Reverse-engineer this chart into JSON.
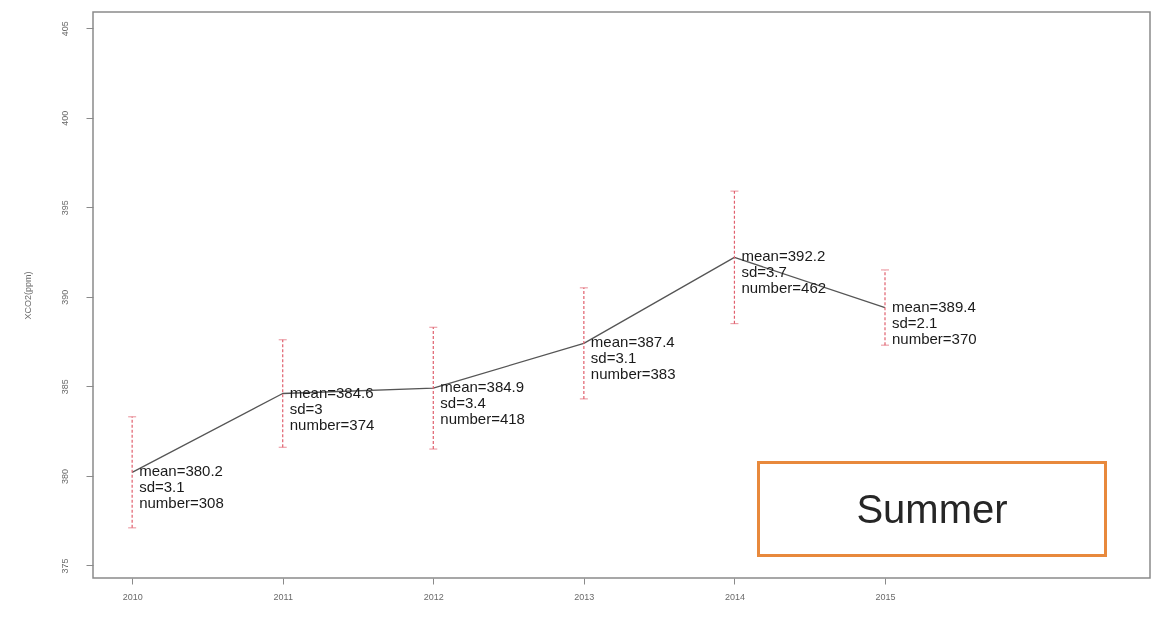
{
  "chart_data": {
    "type": "line",
    "ylabel": "XCO2(ppm)",
    "x": [
      2010,
      2011,
      2012,
      2013,
      2014,
      2015
    ],
    "values": [
      380.2,
      384.6,
      384.9,
      387.4,
      392.2,
      389.4
    ],
    "errors": [
      3.1,
      3,
      3.4,
      3.1,
      3.7,
      2.1
    ],
    "value_labels": [
      "mean=380.2\nsd=3.1\nnumber=308",
      "mean=384.6\nsd=3\nnumber=374",
      "mean=384.9\nsd=3.4\nnumber=418",
      "mean=387.4\nsd=3.1\nnumber=383",
      "mean=392.2\nsd=3.7\nnumber=462",
      "mean=389.4\nsd=2.1\nnumber=370"
    ],
    "color": "#555555",
    "xlim": [
      2009.74,
      2016.76
    ],
    "xticks": [
      2010,
      2011,
      2012,
      2013,
      2014,
      2015
    ],
    "ylim": [
      374.3,
      405.9
    ],
    "yticks": [
      375,
      380,
      385,
      390,
      395,
      400,
      405
    ],
    "annotations": [
      "Summer"
    ],
    "grid": false
  }
}
